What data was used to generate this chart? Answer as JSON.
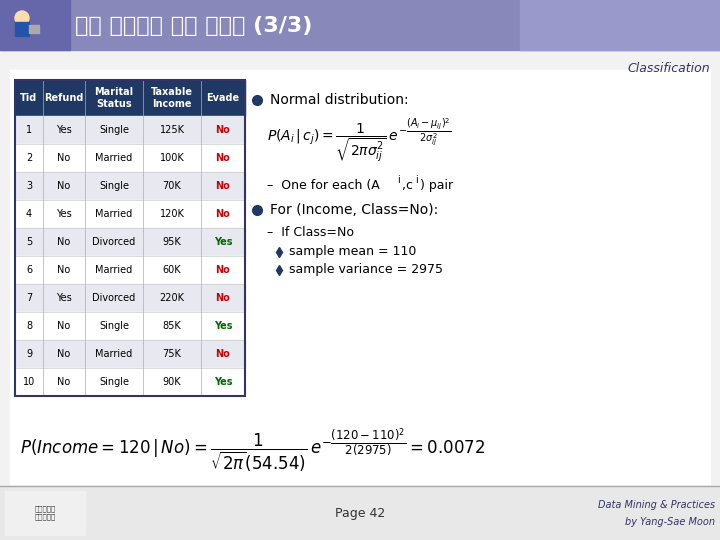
{
  "title": "훈련 집합에서 확률 구하기 (3/3)",
  "title_bg": "#7B7BB0",
  "classification_text": "Classification",
  "header_bg": "#1F3864",
  "header_color": "#FFFFFF",
  "table_headers": [
    "Tid",
    "Refund",
    "Marital\nStatus",
    "Taxable\nIncome",
    "Evade"
  ],
  "table_data": [
    [
      "1",
      "Yes",
      "Single",
      "125K",
      "No"
    ],
    [
      "2",
      "No",
      "Married",
      "100K",
      "No"
    ],
    [
      "3",
      "No",
      "Single",
      "70K",
      "No"
    ],
    [
      "4",
      "Yes",
      "Married",
      "120K",
      "No"
    ],
    [
      "5",
      "No",
      "Divorced",
      "95K",
      "Yes"
    ],
    [
      "6",
      "No",
      "Married",
      "60K",
      "No"
    ],
    [
      "7",
      "Yes",
      "Divorced",
      "220K",
      "No"
    ],
    [
      "8",
      "No",
      "Single",
      "85K",
      "Yes"
    ],
    [
      "9",
      "No",
      "Married",
      "75K",
      "No"
    ],
    [
      "10",
      "No",
      "Single",
      "90K",
      "Yes"
    ]
  ],
  "evade_colors": {
    "No": "#CC0000",
    "Yes": "#006600"
  },
  "row_colors": [
    "#E8E8F0",
    "#FFFFFF"
  ],
  "bg_color": "#FFFFFF",
  "slide_bg": "#F0F0F0",
  "page_text": "Page 42",
  "footer_right": "Data Mining & Practices\nby Yang-Sae Moon",
  "bullet_color": "#1F3864",
  "sub_bullet_color": "#8B0000"
}
